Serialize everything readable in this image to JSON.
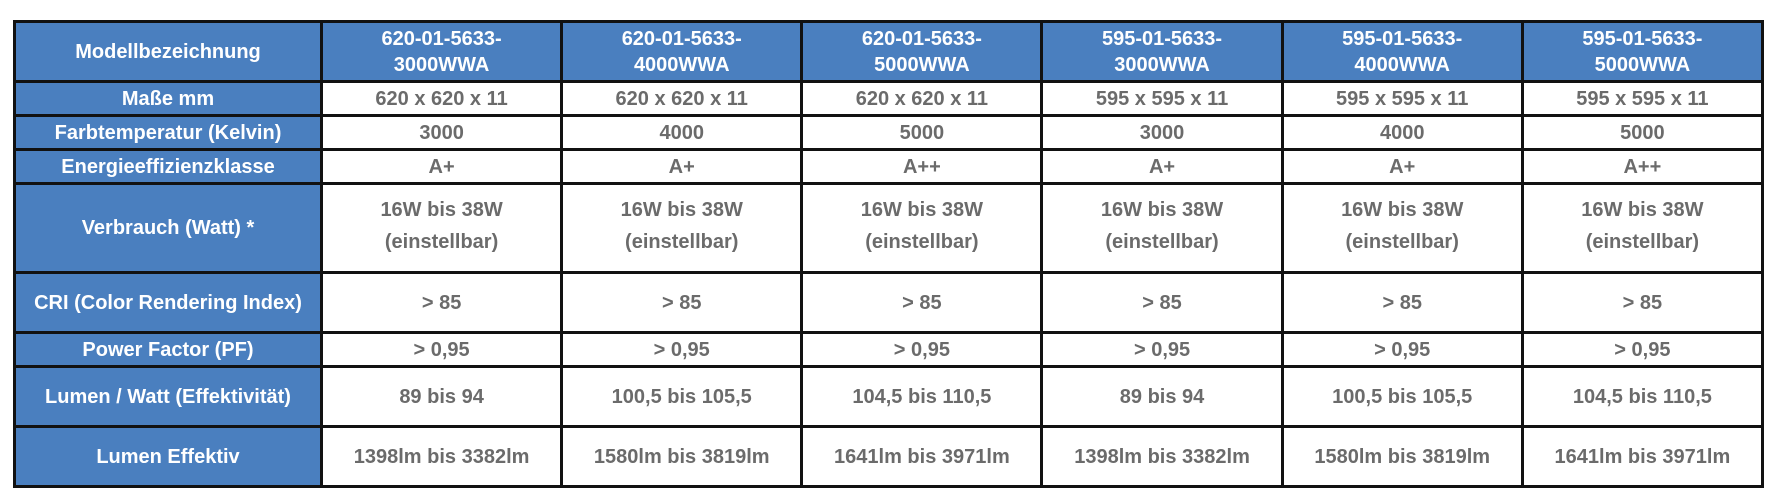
{
  "header": {
    "label": "Modellbezeichnung",
    "models": [
      [
        "620-01-5633-",
        "3000WWA"
      ],
      [
        "620-01-5633-",
        "4000WWA"
      ],
      [
        "620-01-5633-",
        "5000WWA"
      ],
      [
        "595-01-5633-",
        "3000WWA"
      ],
      [
        "595-01-5633-",
        "4000WWA"
      ],
      [
        "595-01-5633-",
        "5000WWA"
      ]
    ]
  },
  "rows": [
    {
      "label": "Maße mm",
      "values": [
        "620 x 620 x 11",
        "620 x 620 x 11",
        "620 x 620 x 11",
        "595 x 595 x 11",
        "595 x 595 x 11",
        "595 x 595 x 11"
      ]
    },
    {
      "label": "Farbtemperatur (Kelvin)",
      "values": [
        "3000",
        "4000",
        "5000",
        "3000",
        "4000",
        "5000"
      ]
    },
    {
      "label": "Energieeffizienzklasse",
      "values": [
        "A+",
        "A+",
        "A++",
        "A+",
        "A+",
        "A++"
      ]
    },
    {
      "label": "Verbrauch (Watt) *",
      "values": [
        "16W bis 38W",
        "16W bis 38W",
        "16W bis 38W",
        "16W bis 38W",
        "16W bis 38W",
        "16W bis 38W"
      ],
      "sub": [
        "(einstellbar)",
        "(einstellbar)",
        "(einstellbar)",
        "(einstellbar)",
        "(einstellbar)",
        "(einstellbar)"
      ]
    },
    {
      "label": "CRI (Color Rendering Index)",
      "values": [
        "> 85",
        "> 85",
        "> 85",
        "> 85",
        "> 85",
        "> 85"
      ]
    },
    {
      "label": "Power Factor (PF)",
      "values": [
        "> 0,95",
        "> 0,95",
        "> 0,95",
        "> 0,95",
        "> 0,95",
        "> 0,95"
      ]
    },
    {
      "label": "Lumen / Watt (Effektivität)",
      "values": [
        "89 bis 94",
        "100,5 bis 105,5",
        "104,5 bis 110,5",
        "89 bis 94",
        "100,5 bis 105,5",
        "104,5 bis 110,5"
      ]
    },
    {
      "label": "Lumen Effektiv",
      "values": [
        "1398lm bis 3382lm",
        "1580lm bis 3819lm",
        "1641lm bis 3971lm",
        "1398lm bis 3382lm",
        "1580lm bis 3819lm",
        "1641lm bis 3971lm"
      ]
    }
  ],
  "colors": {
    "header_bg": "#4a7fbf",
    "header_text": "#ffffff",
    "cell_text": "#6b6b6b",
    "border": "#111111"
  }
}
